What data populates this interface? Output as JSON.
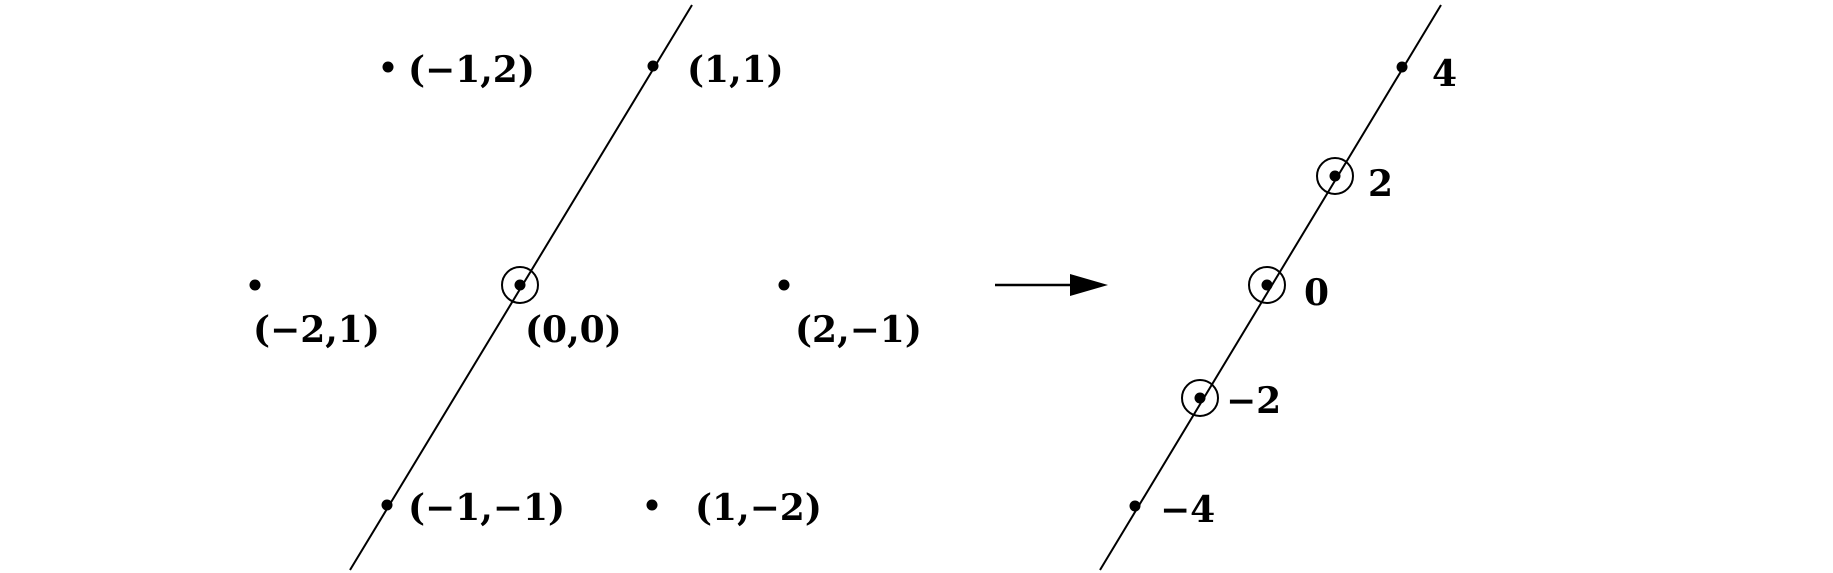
{
  "left_panel": {
    "points": [
      {
        "id": "pt-m1-2",
        "label": "(−1,2)",
        "circled": false
      },
      {
        "id": "pt-1-1",
        "label": "(1,1)",
        "circled": false
      },
      {
        "id": "pt-m2-1",
        "label": "(−2,1)",
        "circled": false
      },
      {
        "id": "pt-0-0",
        "label": "(0,0)",
        "circled": true
      },
      {
        "id": "pt-2-m1",
        "label": "(2,−1)",
        "circled": false
      },
      {
        "id": "pt-m1-m1",
        "label": "(−1,−1)",
        "circled": false
      },
      {
        "id": "pt-1-m2",
        "label": "(1,−2)",
        "circled": false
      }
    ]
  },
  "right_panel": {
    "points": [
      {
        "id": "val-4",
        "label": "4",
        "circled": false
      },
      {
        "id": "val-2",
        "label": "2",
        "circled": true
      },
      {
        "id": "val-0",
        "label": "0",
        "circled": true
      },
      {
        "id": "val-m2",
        "label": "−2",
        "circled": true
      },
      {
        "id": "val-m4",
        "label": "−4",
        "circled": false
      }
    ]
  },
  "colors": {
    "ink": "#000000",
    "background": "#ffffff"
  }
}
